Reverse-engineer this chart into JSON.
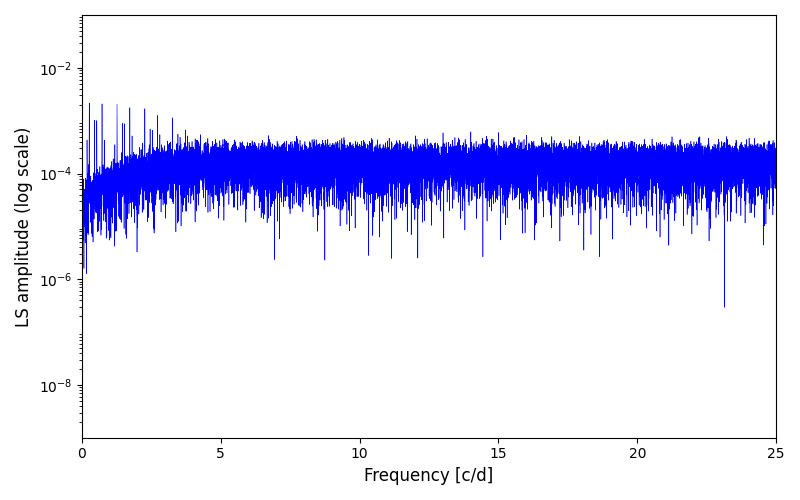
{
  "title": "",
  "xlabel": "Frequency [c/d]",
  "ylabel": "LS amplitude (log scale)",
  "xlim": [
    0,
    25
  ],
  "ylim_log": [
    1e-09,
    0.1
  ],
  "color": "#0000ff",
  "linewidth": 0.4,
  "figsize": [
    8.0,
    5.0
  ],
  "dpi": 100,
  "yticks": [
    1e-08,
    1e-06,
    0.0001,
    0.01
  ],
  "bg_color": "#ffffff"
}
